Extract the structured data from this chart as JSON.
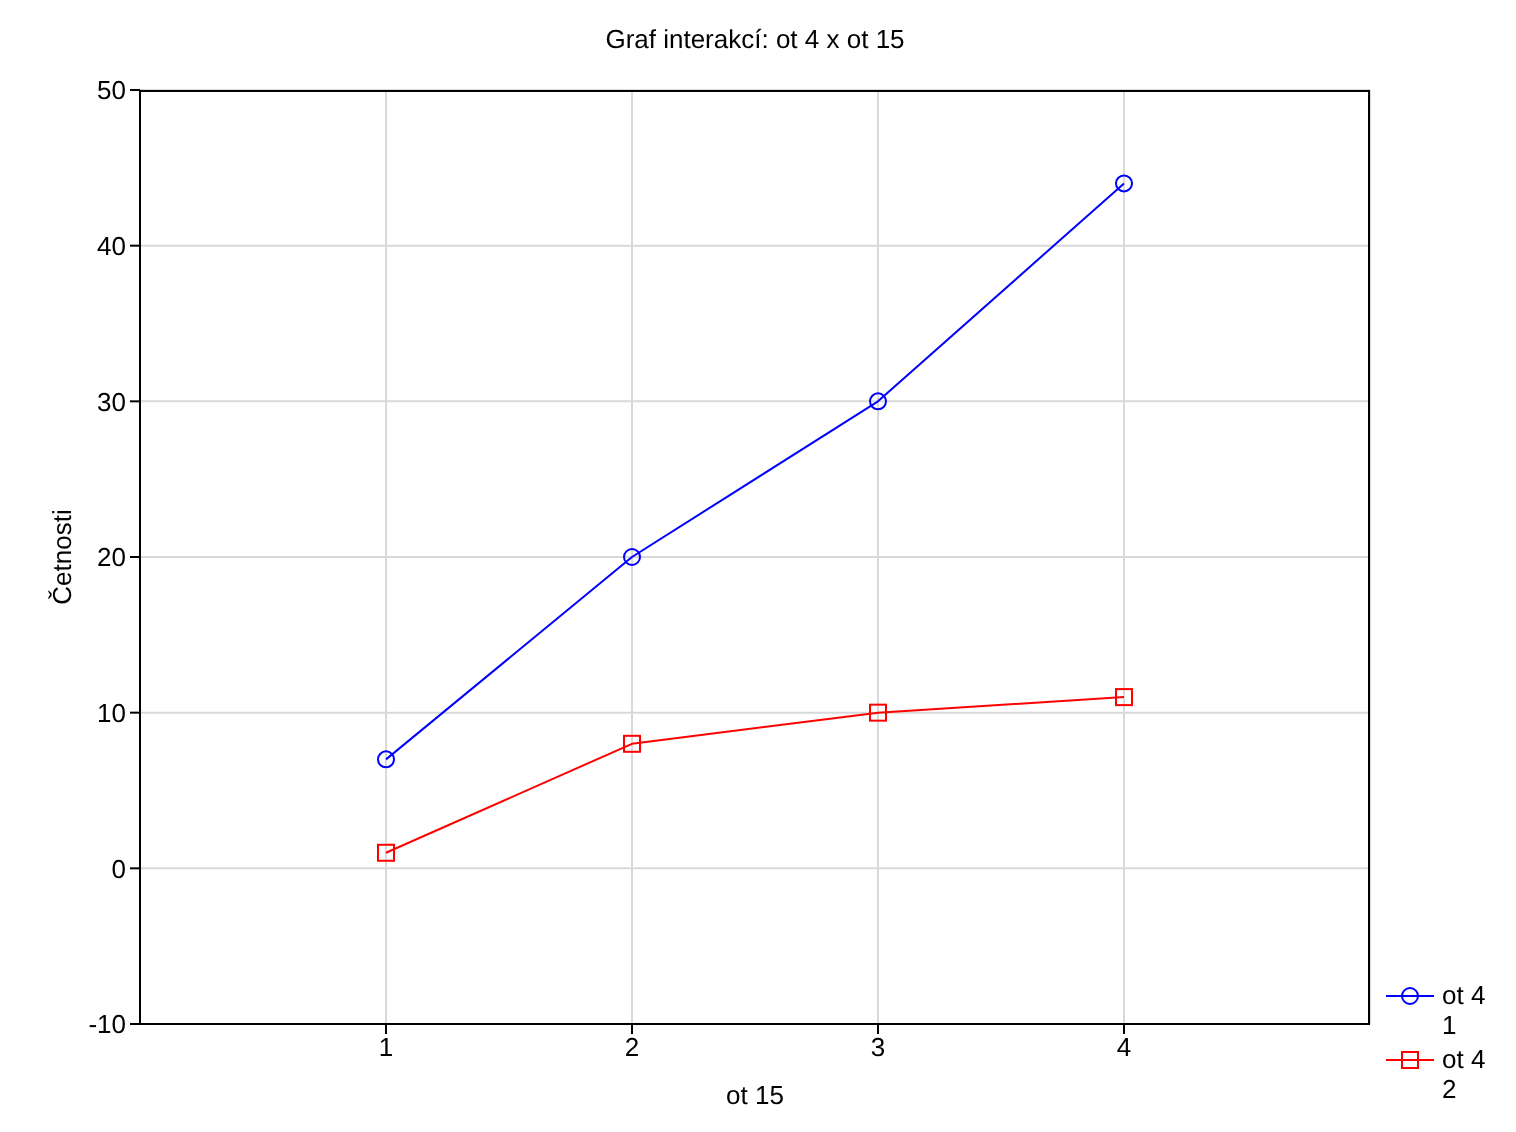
{
  "chart_data": {
    "type": "line",
    "title": "Graf interakcí: ot 4 x ot 15",
    "xlabel": "ot 15",
    "ylabel": "Četnosti",
    "x": [
      1,
      2,
      3,
      4
    ],
    "xlim": [
      0,
      5
    ],
    "xticks": [
      1,
      2,
      3,
      4
    ],
    "ylim": [
      -10,
      50
    ],
    "yticks": [
      -10,
      0,
      10,
      20,
      30,
      40,
      50
    ],
    "grid": true,
    "legend": "bottom right",
    "line_style": "solid",
    "series": [
      {
        "name": "ot 4\n1",
        "color": "#0000ff",
        "marker": "circle",
        "values": [
          7,
          20,
          30,
          44
        ]
      },
      {
        "name": "ot 4\n2",
        "color": "#ff0000",
        "marker": "square",
        "values": [
          1,
          8,
          10,
          11
        ]
      }
    ]
  }
}
